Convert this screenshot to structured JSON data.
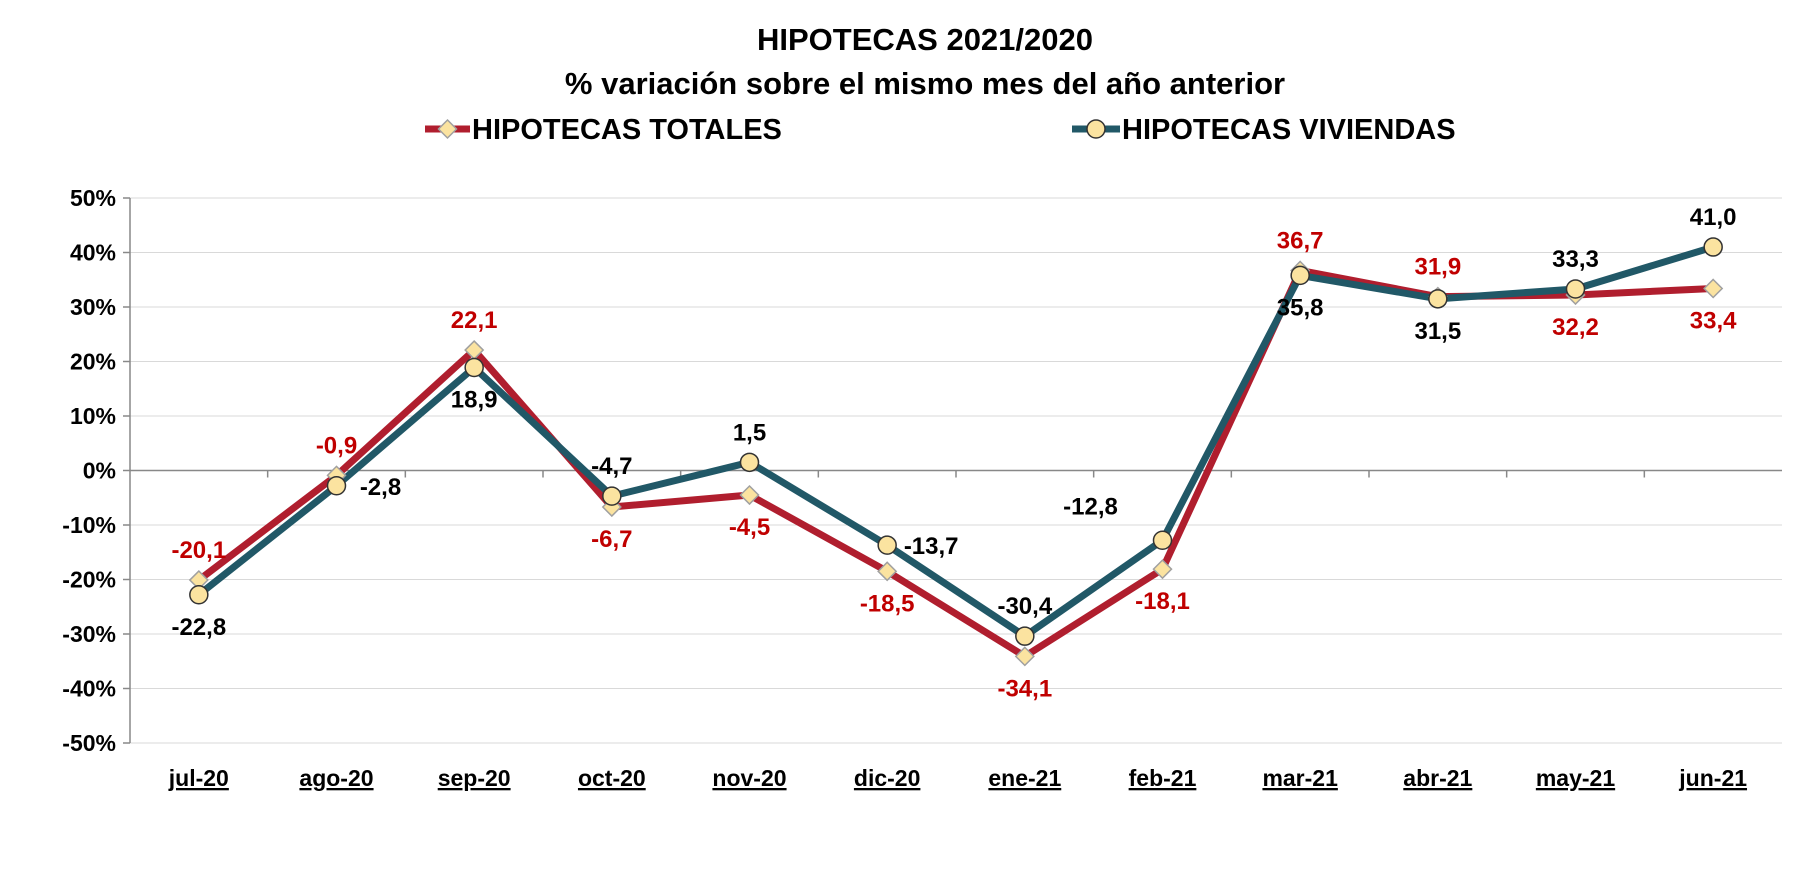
{
  "chart_data": {
    "type": "line",
    "title": "HIPOTECAS 2021/2020",
    "subtitle": "% variación sobre el mismo mes del año anterior",
    "categories": [
      "jul-20",
      "ago-20",
      "sep-20",
      "oct-20",
      "nov-20",
      "dic-20",
      "ene-21",
      "feb-21",
      "mar-21",
      "abr-21",
      "may-21",
      "jun-21"
    ],
    "ylim": [
      -50,
      50
    ],
    "yticks": [
      "50%",
      "40%",
      "30%",
      "20%",
      "10%",
      "0%",
      "-10%",
      "-20%",
      "-30%",
      "-40%",
      "-50%"
    ],
    "ytick_values": [
      50,
      40,
      30,
      20,
      10,
      0,
      -10,
      -20,
      -30,
      -40,
      -50
    ],
    "grid": true,
    "legend_position": "top",
    "series": [
      {
        "name": "HIPOTECAS TOTALES",
        "color": "#b01e2e",
        "marker": "diamond",
        "marker_color": "#fbe3a0",
        "label_color": "#c00000",
        "values": [
          -20.1,
          -0.9,
          22.1,
          -6.7,
          -4.5,
          -18.5,
          -34.1,
          -18.1,
          36.7,
          31.9,
          32.2,
          33.4
        ],
        "labels": [
          "-20,1",
          "-0,9",
          "22,1",
          "-6,7",
          "-4,5",
          "-18,5",
          "-34,1",
          "-18,1",
          "36,7",
          "31,9",
          "32,2",
          "33,4"
        ],
        "label_placement": [
          "above",
          "above",
          "above",
          "below",
          "below",
          "below",
          "below",
          "below",
          "above",
          "above",
          "below",
          "below"
        ]
      },
      {
        "name": "HIPOTECAS VIVIENDAS",
        "color": "#215867",
        "marker": "circle",
        "marker_color": "#fbe3a0",
        "label_color": "#000000",
        "values": [
          -22.8,
          -2.8,
          18.9,
          -4.7,
          1.5,
          -13.7,
          -30.4,
          -12.8,
          35.8,
          31.5,
          33.3,
          41.0
        ],
        "labels": [
          "-22,8",
          "-2,8",
          "18,9",
          "-4,7",
          "1,5",
          "-13,7",
          "-30,4",
          "-12,8",
          "35,8",
          "31,5",
          "33,3",
          "41,0"
        ],
        "label_placement": [
          "below",
          "right",
          "below",
          "above",
          "above",
          "right",
          "above",
          "above-left",
          "below",
          "below",
          "above",
          "above"
        ]
      }
    ]
  }
}
